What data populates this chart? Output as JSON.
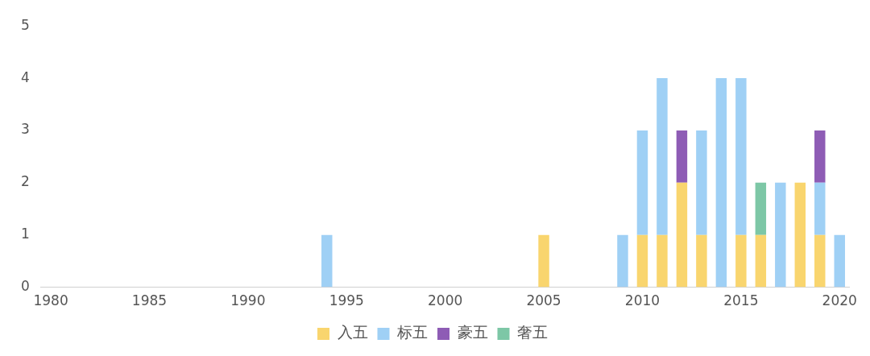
{
  "chart_data": {
    "type": "bar",
    "stacked": true,
    "legend": "bottom",
    "grid": false,
    "categories": [
      "1980",
      null,
      null,
      null,
      null,
      "1985",
      null,
      null,
      null,
      null,
      "1990",
      null,
      null,
      null,
      null,
      "1995",
      null,
      null,
      null,
      null,
      "2000",
      null,
      null,
      null,
      null,
      "2005",
      null,
      null,
      null,
      null,
      "2010",
      null,
      null,
      null,
      null,
      "2015",
      null,
      null,
      null,
      null,
      "2020"
    ],
    "ylim": [
      0,
      5
    ],
    "yticks": [
      0,
      1,
      2,
      3,
      4,
      5
    ],
    "series": [
      {
        "name": "入五",
        "color": "#f9d56e",
        "values": [
          0,
          0,
          0,
          0,
          0,
          0,
          0,
          0,
          0,
          0,
          0,
          0,
          0,
          0,
          0,
          0,
          0,
          0,
          0,
          0,
          0,
          0,
          0,
          0,
          0,
          1,
          0,
          0,
          0,
          0,
          1,
          1,
          2,
          1,
          0,
          1,
          1,
          0,
          2,
          1,
          0
        ]
      },
      {
        "name": "标五",
        "color": "#9fd0f5",
        "values": [
          0,
          0,
          0,
          0,
          0,
          0,
          0,
          0,
          0,
          0,
          0,
          0,
          0,
          0,
          1,
          0,
          0,
          0,
          0,
          0,
          0,
          0,
          0,
          0,
          0,
          0,
          0,
          0,
          0,
          1,
          2,
          3,
          0,
          2,
          4,
          3,
          0,
          2,
          0,
          1,
          1
        ]
      },
      {
        "name": "豪五",
        "color": "#8e5cb5",
        "values": [
          0,
          0,
          0,
          0,
          0,
          0,
          0,
          0,
          0,
          0,
          0,
          0,
          0,
          0,
          0,
          0,
          0,
          0,
          0,
          0,
          0,
          0,
          0,
          0,
          0,
          0,
          0,
          0,
          0,
          0,
          0,
          0,
          1,
          0,
          0,
          0,
          0,
          0,
          0,
          1,
          0
        ]
      },
      {
        "name": "奢五",
        "color": "#7dc7a6",
        "values": [
          0,
          0,
          0,
          0,
          0,
          0,
          0,
          0,
          0,
          0,
          0,
          0,
          0,
          0,
          0,
          0,
          0,
          0,
          0,
          0,
          0,
          0,
          0,
          0,
          0,
          0,
          0,
          0,
          0,
          0,
          0,
          0,
          0,
          0,
          0,
          0,
          1,
          0,
          0,
          0,
          0
        ]
      }
    ]
  }
}
